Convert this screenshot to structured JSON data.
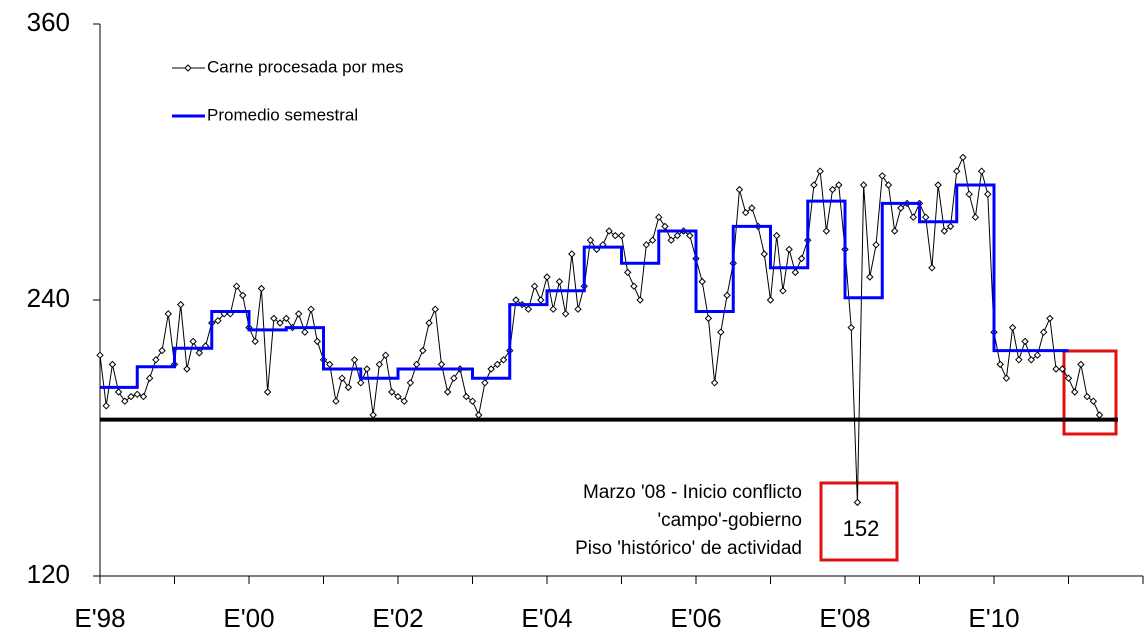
{
  "chart_data": {
    "type": "line",
    "series": [
      {
        "name": "Carne procesada por mes",
        "color": "#000000",
        "marker": "diamond",
        "x": [
          0,
          1,
          2,
          3,
          4,
          5,
          6,
          7,
          8,
          9,
          10,
          11,
          12,
          13,
          14,
          15,
          16,
          17,
          18,
          19,
          20,
          21,
          22,
          23,
          24,
          25,
          26,
          27,
          28,
          29,
          30,
          31,
          32,
          33,
          34,
          35,
          36,
          37,
          38,
          39,
          40,
          41,
          42,
          43,
          44,
          45,
          46,
          47,
          48,
          49,
          50,
          51,
          52,
          53,
          54,
          55,
          56,
          57,
          58,
          59,
          60,
          61,
          62,
          63,
          64,
          65,
          66,
          67,
          68,
          69,
          70,
          71,
          72,
          73,
          74,
          75,
          76,
          77,
          78,
          79,
          80,
          81,
          82,
          83,
          84,
          85,
          86,
          87,
          88,
          89,
          90,
          91,
          92,
          93,
          94,
          95,
          96,
          97,
          98,
          99,
          100,
          101,
          102,
          103,
          104,
          105,
          106,
          107,
          108,
          109,
          110,
          111,
          112,
          113,
          114,
          115,
          116,
          117,
          118,
          119,
          120,
          121,
          122,
          123,
          124,
          125,
          126,
          127,
          128,
          129,
          130,
          131,
          132,
          133,
          134,
          135,
          136,
          137,
          138,
          139,
          140,
          141,
          142,
          143,
          144,
          145,
          146,
          147,
          148,
          149,
          150,
          151,
          152,
          153,
          154,
          155,
          156,
          157,
          158,
          159,
          160,
          161
        ],
        "values": [
          216,
          194,
          212,
          200,
          196,
          198,
          199,
          198,
          206,
          214,
          218,
          234,
          212,
          238,
          210,
          222,
          217,
          220,
          230,
          231,
          234,
          234,
          246,
          242,
          228,
          222,
          245,
          200,
          232,
          230,
          232,
          228,
          234,
          226,
          236,
          222,
          214,
          212,
          196,
          206,
          202,
          214,
          204,
          210,
          190,
          212,
          216,
          200,
          198,
          196,
          204,
          212,
          218,
          230,
          236,
          212,
          200,
          206,
          210,
          198,
          196,
          190,
          204,
          210,
          212,
          214,
          218,
          240,
          238,
          236,
          246,
          240,
          250,
          236,
          248,
          234,
          260,
          236,
          246,
          266,
          262,
          264,
          270,
          268,
          268,
          252,
          246,
          240,
          264,
          266,
          276,
          272,
          266,
          268,
          270,
          268,
          258,
          248,
          232,
          204,
          226,
          242,
          256,
          288,
          278,
          280,
          272,
          260,
          240,
          268,
          244,
          262,
          252,
          258,
          266,
          290,
          296,
          270,
          288,
          290,
          262,
          228,
          152,
          290,
          250,
          264,
          294,
          290,
          270,
          280,
          282,
          276,
          282,
          276,
          254,
          290,
          270,
          272,
          296,
          302,
          286,
          276,
          296,
          286,
          226,
          212,
          206,
          228,
          214,
          222,
          214,
          216,
          226,
          232,
          210,
          210,
          206,
          200,
          212,
          198,
          196,
          190
        ]
      },
      {
        "name": "Promedio semestral",
        "color": "#0000ff",
        "step": true,
        "step_width": 6,
        "x": [
          0,
          6,
          12,
          18,
          24,
          30,
          36,
          42,
          48,
          54,
          60,
          66,
          72,
          78,
          84,
          90,
          96,
          102,
          108,
          114,
          120,
          126,
          132,
          138,
          144,
          150
        ],
        "values": [
          202,
          211,
          219,
          235,
          227,
          228,
          210,
          206,
          210,
          210,
          206,
          238,
          244,
          263,
          256,
          270,
          235,
          272,
          254,
          283,
          241,
          282,
          274,
          290,
          218,
          218
        ]
      }
    ],
    "reference_line": {
      "value": 188,
      "color": "#000000"
    },
    "annotation": {
      "text": [
        "Marzo '08 - Inicio conflicto",
        "'campo'-gobierno",
        "Piso 'histórico' de actividad"
      ],
      "series": 0,
      "index": 122
    },
    "xlim": [
      0,
      168
    ],
    "xticks": [
      {
        "value": 0,
        "label": "E'98"
      },
      {
        "value": 24,
        "label": "E'00"
      },
      {
        "value": 48,
        "label": "E'02"
      },
      {
        "value": 72,
        "label": "E'04"
      },
      {
        "value": 96,
        "label": "E'06"
      },
      {
        "value": 120,
        "label": "E'08"
      },
      {
        "value": 144,
        "label": "E'10"
      }
    ],
    "minor_xticks": [
      12,
      36,
      60,
      84,
      108,
      132,
      156,
      168
    ],
    "ylim": [
      120,
      360
    ],
    "yticks": [
      120,
      240,
      360
    ],
    "legend": "upper-left"
  }
}
